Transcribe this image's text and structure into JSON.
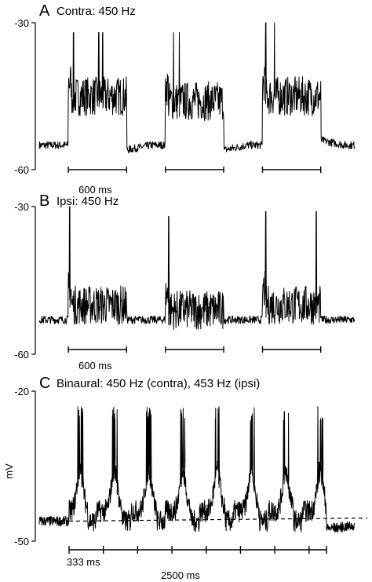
{
  "chart_data": [
    {
      "type": "line",
      "panel_letter": "A",
      "title": "Contra: 450 Hz",
      "ylabel": "",
      "ylim": [
        -60,
        -30
      ],
      "y_ticks": [
        "-30",
        "-60"
      ],
      "baseline_mv": -55,
      "stimulus_bar_label": "600 ms",
      "stimulus_duration_ms": 600,
      "stimuli": [
        {
          "start_ms": 300,
          "end_ms": 900,
          "peak_mv": -32,
          "plateau_mv": -45,
          "after_mv": -56
        },
        {
          "start_ms": 1300,
          "end_ms": 1900,
          "peak_mv": -32,
          "plateau_mv": -46,
          "after_mv": -56
        },
        {
          "start_ms": 2300,
          "end_ms": 2900,
          "peak_mv": -30,
          "plateau_mv": -45,
          "after_mv": -54
        }
      ],
      "spikes_ms": [
        [
          350,
          610,
          650
        ],
        [
          1380,
          1440
        ],
        [
          2330,
          2420
        ]
      ]
    },
    {
      "type": "line",
      "panel_letter": "B",
      "title": "Ipsi: 450 Hz",
      "ylabel": "",
      "ylim": [
        -60,
        -30
      ],
      "y_ticks": [
        "-30",
        "-60"
      ],
      "baseline_mv": -53,
      "stimulus_bar_label": "600 ms",
      "stimulus_duration_ms": 600,
      "stimuli": [
        {
          "start_ms": 300,
          "end_ms": 900,
          "peak_mv": -30,
          "plateau_mv": -50,
          "after_mv": -53
        },
        {
          "start_ms": 1300,
          "end_ms": 1900,
          "peak_mv": -32,
          "plateau_mv": -51,
          "after_mv": -53
        },
        {
          "start_ms": 2300,
          "end_ms": 2900,
          "peak_mv": -31,
          "plateau_mv": -50,
          "after_mv": -53
        }
      ],
      "spikes_ms": [
        [
          310
        ],
        [
          1330
        ],
        [
          2330,
          2850
        ]
      ]
    },
    {
      "type": "line",
      "panel_letter": "C",
      "title": "Binaural: 450 Hz (contra), 453 Hz (ipsi)",
      "ylabel": "mV",
      "ylim": [
        -50,
        -20
      ],
      "y_ticks": [
        "-20",
        "-50"
      ],
      "resting_mv": -46,
      "beat_period_ms": 333,
      "beat_period_label": "333 ms",
      "total_duration_ms": 2500,
      "total_duration_label": "2500 ms",
      "burst_peak_mv": -26,
      "beat_count": 7
    }
  ]
}
